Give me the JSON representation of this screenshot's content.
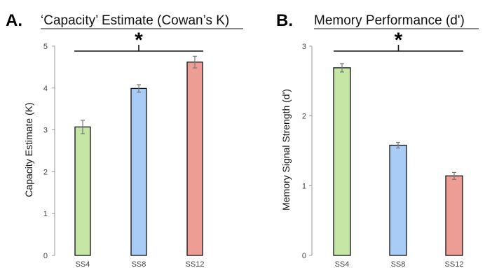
{
  "chart_data": [
    {
      "type": "bar",
      "panel": "A.",
      "title": "‘Capacity’ Estimate (Cowan’s K)",
      "ylabel": "Capacity Estimate (K)",
      "xlabel": "",
      "categories": [
        "SS4",
        "SS8",
        "SS12"
      ],
      "values": [
        3.07,
        3.99,
        4.62
      ],
      "errors": [
        0.16,
        0.09,
        0.14
      ],
      "colors": [
        "#c6e6a5",
        "#a9ccf6",
        "#ee9d94"
      ],
      "ylim": [
        0,
        5
      ],
      "yticks": [
        "0",
        "1",
        "2",
        "3",
        "4",
        "5"
      ],
      "significance": "*",
      "grid": false
    },
    {
      "type": "bar",
      "panel": "B.",
      "title": "Memory Performance (d')",
      "ylabel": "Memory Signal Strength (d')",
      "xlabel": "",
      "categories": [
        "SS4",
        "SS8",
        "SS12"
      ],
      "values": [
        2.69,
        1.58,
        1.14
      ],
      "errors": [
        0.06,
        0.04,
        0.05
      ],
      "colors": [
        "#c6e6a5",
        "#a9ccf6",
        "#ee9d94"
      ],
      "ylim": [
        0,
        3
      ],
      "yticks": [
        "0",
        "1",
        "2",
        "3"
      ],
      "significance": "*",
      "grid": false
    }
  ]
}
